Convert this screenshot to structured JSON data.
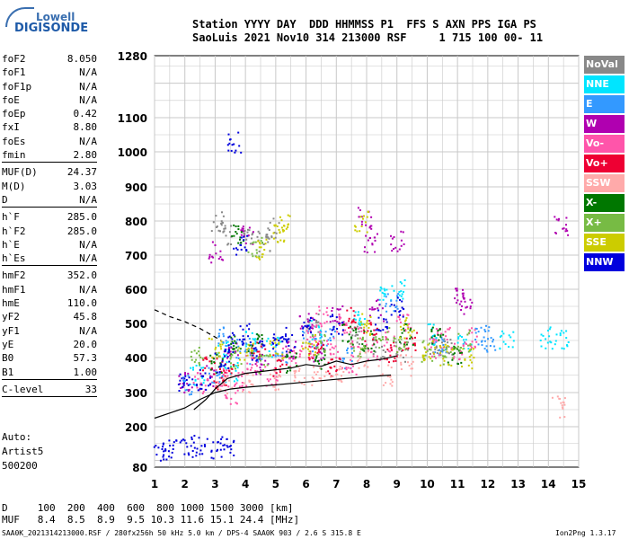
{
  "logo": {
    "line1": "Lowell",
    "line2": "DIGISONDE"
  },
  "header": {
    "line1": "Station YYYY DAY  DDD HHMMSS P1  FFS S AXN PPS IGA PS",
    "line2": "SaoLuis 2021 Nov10 314 213000 RSF     1 715 100 00- 11"
  },
  "params": [
    {
      "group": [
        {
          "k": "foF2",
          "v": "8.050"
        },
        {
          "k": "foF1",
          "v": "N/A"
        },
        {
          "k": "foF1p",
          "v": "N/A"
        },
        {
          "k": "foE",
          "v": "N/A"
        },
        {
          "k": "foEp",
          "v": "0.42"
        },
        {
          "k": "fxI",
          "v": "8.80"
        },
        {
          "k": "foEs",
          "v": "N/A"
        },
        {
          "k": "fmin",
          "v": "2.80"
        }
      ]
    },
    {
      "group": [
        {
          "k": "MUF(D)",
          "v": "24.37"
        },
        {
          "k": "M(D)",
          "v": "3.03"
        },
        {
          "k": "D",
          "v": "N/A"
        }
      ]
    },
    {
      "group": [
        {
          "k": "h`F",
          "v": "285.0"
        },
        {
          "k": "h`F2",
          "v": "285.0"
        },
        {
          "k": "h`E",
          "v": "N/A"
        },
        {
          "k": "h`Es",
          "v": "N/A"
        }
      ]
    },
    {
      "group": [
        {
          "k": "hmF2",
          "v": "352.0"
        },
        {
          "k": "hmF1",
          "v": "N/A"
        },
        {
          "k": "hmE",
          "v": "110.0"
        },
        {
          "k": "yF2",
          "v": "45.8"
        },
        {
          "k": "yF1",
          "v": "N/A"
        },
        {
          "k": "yE",
          "v": "20.0"
        },
        {
          "k": "B0",
          "v": "57.3"
        },
        {
          "k": "B1",
          "v": "1.00"
        }
      ]
    },
    {
      "group": [
        {
          "k": "C-level",
          "v": "33"
        }
      ]
    }
  ],
  "auto": {
    "line1": "Auto:",
    "line2": "Artist5",
    "line3": "500200"
  },
  "legend": [
    {
      "label": "NoVal",
      "color": "#888888"
    },
    {
      "label": "NNE",
      "color": "#00e5ff"
    },
    {
      "label": "E",
      "color": "#3399ff"
    },
    {
      "label": "W",
      "color": "#b000b0"
    },
    {
      "label": "Vo-",
      "color": "#ff55aa"
    },
    {
      "label": "Vo+",
      "color": "#ee0033"
    },
    {
      "label": "SSW",
      "color": "#ffaaaa"
    },
    {
      "label": "X-",
      "color": "#007700"
    },
    {
      "label": "X+",
      "color": "#77bb44"
    },
    {
      "label": "SSE",
      "color": "#cccc00"
    },
    {
      "label": "NNW",
      "color": "#0000dd"
    }
  ],
  "bottom": {
    "line1": "D     100  200  400  600  800 1000 1500 3000 [km]",
    "line2": "MUF   8.4  8.5  8.9  9.5 10.3 11.6 15.1 24.4 [MHz]"
  },
  "footer": {
    "left": "SAA0K_2021314213000.RSF / 280fx256h 50 kHz 5.0 km / DPS-4 SAA0K 903 / 2.6 S 315.8 E",
    "right": "Ion2Png 1.3.17"
  },
  "chart_data": {
    "type": "scatter",
    "title": "",
    "xlabel": "",
    "ylabel": "",
    "xlim": [
      1,
      15
    ],
    "ylim": [
      80,
      1280
    ],
    "x_ticks": [
      "1",
      "2",
      "3",
      "4",
      "5",
      "6",
      "7",
      "8",
      "9",
      "10",
      "11",
      "12",
      "13",
      "14",
      "15"
    ],
    "y_ticks": [
      "80",
      "200",
      "300",
      "400",
      "500",
      "600",
      "700",
      "800",
      "900",
      "1000",
      "1100",
      "1280"
    ],
    "y_scale": "nonlinear (virtual height, km)",
    "grid": true,
    "legend_position": "right",
    "series": [
      {
        "color": "#888888",
        "points": [
          [
            3.1,
            800
          ],
          [
            3.3,
            760
          ],
          [
            4.0,
            760
          ],
          [
            4.6,
            740
          ],
          [
            4.9,
            780
          ],
          [
            6.2,
            500
          ],
          [
            7.6,
            470
          ],
          [
            8.4,
            430
          ],
          [
            9.1,
            420
          ],
          [
            10.2,
            440
          ],
          [
            10.6,
            430
          ]
        ]
      },
      {
        "color": "#00e5ff",
        "points": [
          [
            2.4,
            350
          ],
          [
            3.2,
            420
          ],
          [
            3.5,
            360
          ],
          [
            4.2,
            450
          ],
          [
            4.9,
            430
          ],
          [
            6.3,
            480
          ],
          [
            7.7,
            520
          ],
          [
            8.6,
            580
          ],
          [
            9.0,
            600
          ],
          [
            10.1,
            470
          ],
          [
            11.2,
            450
          ],
          [
            12.6,
            450
          ],
          [
            13.9,
            460
          ],
          [
            14.4,
            450
          ]
        ]
      },
      {
        "color": "#3399ff",
        "points": [
          [
            2.1,
            320
          ],
          [
            3.0,
            360
          ],
          [
            3.3,
            460
          ],
          [
            3.9,
            430
          ],
          [
            4.3,
            410
          ],
          [
            5.2,
            410
          ],
          [
            6.1,
            450
          ],
          [
            6.7,
            460
          ],
          [
            7.3,
            400
          ],
          [
            8.8,
            560
          ],
          [
            10.4,
            440
          ],
          [
            11.8,
            470
          ],
          [
            12.0,
            450
          ]
        ]
      },
      {
        "color": "#b000b0",
        "points": [
          [
            2.0,
            330
          ],
          [
            2.7,
            350
          ],
          [
            3.5,
            420
          ],
          [
            4.5,
            380
          ],
          [
            5.4,
            430
          ],
          [
            6.0,
            500
          ],
          [
            6.4,
            420
          ],
          [
            7.0,
            530
          ],
          [
            8.3,
            540
          ],
          [
            9.0,
            740
          ],
          [
            8.1,
            740
          ],
          [
            7.9,
            810
          ],
          [
            11.3,
            560
          ],
          [
            11.1,
            580
          ],
          [
            14.4,
            790
          ],
          [
            4.0,
            760
          ],
          [
            3.0,
            710
          ]
        ]
      },
      {
        "color": "#ff55aa",
        "points": [
          [
            2.5,
            330
          ],
          [
            3.2,
            350
          ],
          [
            3.8,
            340
          ],
          [
            4.2,
            390
          ],
          [
            4.8,
            350
          ],
          [
            5.4,
            400
          ],
          [
            6.0,
            430
          ],
          [
            6.2,
            470
          ],
          [
            6.5,
            520
          ],
          [
            6.9,
            430
          ],
          [
            7.1,
            500
          ],
          [
            7.4,
            380
          ],
          [
            7.6,
            460
          ],
          [
            8.2,
            420
          ],
          [
            8.7,
            450
          ],
          [
            9.2,
            500
          ],
          [
            10.2,
            430
          ],
          [
            10.5,
            460
          ],
          [
            11.0,
            420
          ],
          [
            11.4,
            460
          ],
          [
            3.5,
            300
          ]
        ]
      },
      {
        "color": "#ee0033",
        "points": [
          [
            2.8,
            380
          ],
          [
            3.4,
            360
          ],
          [
            4.4,
            420
          ],
          [
            5.1,
            380
          ],
          [
            6.3,
            420
          ],
          [
            6.9,
            380
          ],
          [
            7.4,
            520
          ],
          [
            8.1,
            480
          ],
          [
            8.8,
            420
          ],
          [
            9.4,
            450
          ],
          [
            3.1,
            340
          ]
        ]
      },
      {
        "color": "#ffaaaa",
        "points": [
          [
            3.3,
            320
          ],
          [
            4.1,
            330
          ],
          [
            5.0,
            340
          ],
          [
            5.8,
            350
          ],
          [
            6.4,
            350
          ],
          [
            7.0,
            350
          ],
          [
            7.8,
            400
          ],
          [
            8.6,
            350
          ],
          [
            9.3,
            380
          ],
          [
            14.3,
            260
          ]
        ]
      },
      {
        "color": "#007700",
        "points": [
          [
            3.0,
            380
          ],
          [
            3.6,
            440
          ],
          [
            4.3,
            440
          ],
          [
            5.5,
            390
          ],
          [
            6.5,
            400
          ],
          [
            7.4,
            470
          ],
          [
            8.0,
            450
          ],
          [
            9.3,
            470
          ],
          [
            10.3,
            460
          ],
          [
            10.9,
            410
          ],
          [
            3.7,
            760
          ]
        ]
      },
      {
        "color": "#77bb44",
        "points": [
          [
            3.6,
            400
          ],
          [
            4.6,
            380
          ],
          [
            6.4,
            440
          ],
          [
            7.7,
            430
          ],
          [
            8.5,
            460
          ],
          [
            9.1,
            440
          ],
          [
            10.0,
            420
          ],
          [
            10.7,
            400
          ],
          [
            11.2,
            450
          ],
          [
            4.3,
            730
          ],
          [
            2.4,
            400
          ]
        ]
      },
      {
        "color": "#cccc00",
        "points": [
          [
            3.0,
            430
          ],
          [
            4.0,
            420
          ],
          [
            5.0,
            430
          ],
          [
            6.1,
            440
          ],
          [
            7.9,
            500
          ],
          [
            9.3,
            490
          ],
          [
            10.0,
            420
          ],
          [
            10.6,
            410
          ],
          [
            11.3,
            400
          ],
          [
            4.5,
            720
          ],
          [
            5.1,
            770
          ],
          [
            7.8,
            800
          ],
          [
            5.3,
            790
          ]
        ]
      },
      {
        "color": "#0000dd",
        "points": [
          [
            1.2,
            130
          ],
          [
            1.5,
            135
          ],
          [
            2.0,
            140
          ],
          [
            2.5,
            145
          ],
          [
            3.0,
            140
          ],
          [
            3.4,
            135
          ],
          [
            2.0,
            330
          ],
          [
            2.6,
            340
          ],
          [
            3.2,
            390
          ],
          [
            3.4,
            450
          ],
          [
            4.0,
            470
          ],
          [
            4.4,
            420
          ],
          [
            5.1,
            460
          ],
          [
            5.4,
            440
          ],
          [
            6.1,
            490
          ],
          [
            7.0,
            500
          ],
          [
            8.5,
            510
          ],
          [
            9.0,
            550
          ],
          [
            3.8,
            730
          ],
          [
            3.6,
            1030
          ]
        ]
      }
    ],
    "curves": [
      {
        "style": "solid",
        "points": [
          [
            1,
            225
          ],
          [
            1.5,
            240
          ],
          [
            2,
            255
          ],
          [
            2.5,
            280
          ],
          [
            3,
            300
          ],
          [
            3.5,
            310
          ],
          [
            4,
            315
          ],
          [
            5,
            322
          ],
          [
            6,
            330
          ],
          [
            7,
            338
          ],
          [
            8,
            345
          ],
          [
            8.8,
            350
          ]
        ]
      },
      {
        "style": "solid",
        "points": [
          [
            2.3,
            250
          ],
          [
            2.7,
            280
          ],
          [
            3.0,
            310
          ],
          [
            3.4,
            340
          ],
          [
            4,
            355
          ],
          [
            5,
            365
          ],
          [
            5.5,
            370
          ],
          [
            6,
            380
          ],
          [
            6.5,
            375
          ],
          [
            7,
            390
          ],
          [
            7.5,
            380
          ],
          [
            8,
            390
          ],
          [
            8.5,
            395
          ],
          [
            9,
            405
          ]
        ]
      },
      {
        "style": "dashed",
        "points": [
          [
            1,
            540
          ],
          [
            1.5,
            520
          ],
          [
            2,
            505
          ],
          [
            2.5,
            485
          ],
          [
            3,
            460
          ],
          [
            3.2,
            450
          ]
        ]
      }
    ]
  }
}
